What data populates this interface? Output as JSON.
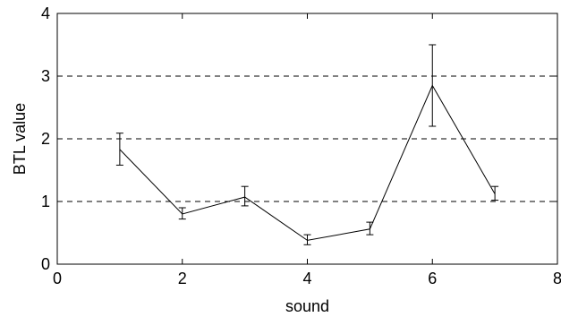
{
  "chart_data": {
    "type": "line",
    "title": "",
    "xlabel": "sound",
    "ylabel": "BTL value",
    "xlim": [
      0,
      8
    ],
    "ylim": [
      0,
      4
    ],
    "x_ticks": [
      "0",
      "2",
      "4",
      "6",
      "8"
    ],
    "y_ticks": [
      "0",
      "1",
      "2",
      "3",
      "4"
    ],
    "y_grid": [
      1,
      2,
      3
    ],
    "grid_style": "dashed horizontal",
    "legend": "none",
    "series": [
      {
        "x": [
          1,
          2,
          3,
          4,
          5,
          6,
          7
        ],
        "y": [
          1.83,
          0.8,
          1.07,
          0.38,
          0.56,
          2.85,
          1.12
        ],
        "err_low": [
          1.58,
          0.72,
          0.93,
          0.31,
          0.47,
          2.2,
          1.02
        ],
        "err_high": [
          2.09,
          0.9,
          1.24,
          0.47,
          0.67,
          3.5,
          1.24
        ]
      }
    ],
    "colors": {
      "line": "#000000",
      "grid": "#000000",
      "axes": "#000000"
    }
  }
}
